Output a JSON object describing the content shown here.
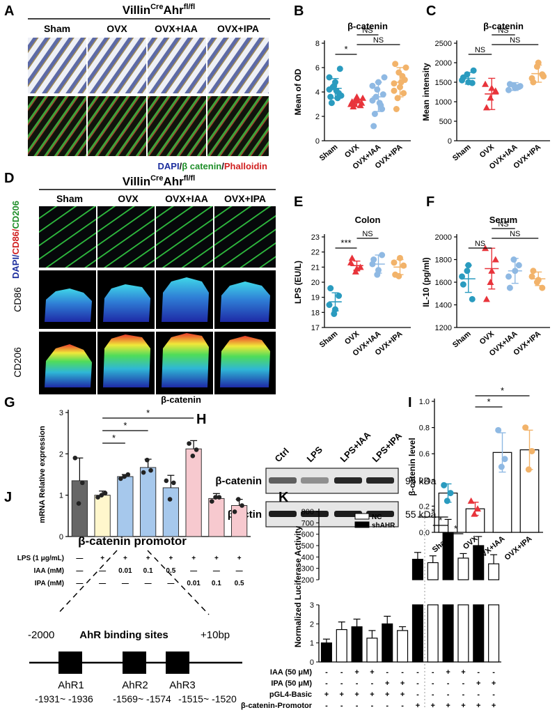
{
  "panels": {
    "A": {
      "label": "A",
      "title_main": "Villin",
      "title_sup1": "Cre",
      "title_mid": "Ahr",
      "title_sup2": "fl/fl",
      "columns": [
        "Sham",
        "OVX",
        "OVX+IAA",
        "OVX+IPA"
      ],
      "legend_dapi": "DAPI",
      "legend_sep1": "/",
      "legend_bcat": "β catenin",
      "legend_sep2": "/",
      "legend_phal": "Phalloidin"
    },
    "D": {
      "label": "D",
      "title_main": "Villin",
      "title_sup1": "Cre",
      "title_mid": "Ahr",
      "title_sup2": "fl/fl",
      "columns": [
        "Sham",
        "OVX",
        "OVX+IAA",
        "OVX+IPA"
      ],
      "row1_dapi": "DAPI/",
      "row1_cd86": "CD86/",
      "row1_cd206": "CD206",
      "row2": "CD86",
      "row3": "CD206"
    },
    "H": {
      "label": "H",
      "lanes": [
        "Ctrl",
        "LPS",
        "LPS+IAA",
        "LPS+IPA"
      ],
      "bands": [
        {
          "name": "β-catenin",
          "kda": "95 kDa",
          "intensity": [
            0.55,
            0.3,
            0.85,
            0.85
          ]
        },
        {
          "name": "β-actin",
          "kda": "55 kDa",
          "intensity": [
            0.9,
            0.9,
            0.9,
            0.9
          ]
        }
      ]
    },
    "J": {
      "label": "J",
      "title": "β-catenin promotor",
      "left": "-2000",
      "right": "+10bp",
      "middle": "AhR binding sites",
      "sites": [
        {
          "name": "AhR1",
          "range": "-1931~ -1936"
        },
        {
          "name": "AhR2",
          "range": "-1569~ -1574"
        },
        {
          "name": "AhR3",
          "range": "-1515~ -1520"
        }
      ]
    }
  },
  "chart_data": [
    {
      "id": "B",
      "label": "B",
      "type": "scatter",
      "title": "β-catenin",
      "ylabel": "Mean of OD",
      "xlabel": "",
      "categories": [
        "Sham",
        "OVX",
        "OVX+IAA",
        "OVX+IPA"
      ],
      "ylim": [
        0,
        8
      ],
      "yticks": [
        0,
        2,
        4,
        6,
        8
      ],
      "colors": [
        "#2a9bbf",
        "#e8343b",
        "#8fb9e3",
        "#f2b36a"
      ],
      "markers": [
        "circle",
        "triangle",
        "circle",
        "circle"
      ],
      "points": [
        [
          4.2,
          4.5,
          3.9,
          3.6,
          4.8,
          5.9,
          3.1,
          4.1,
          3.7,
          4.4,
          3.5,
          5.2
        ],
        [
          3.0,
          3.4,
          2.9,
          3.2,
          3.6,
          3.1,
          2.8,
          3.3,
          3.5,
          3.0
        ],
        [
          3.3,
          4.2,
          2.6,
          1.2,
          4.8,
          3.8,
          2.2,
          3.1,
          5.2,
          3.6,
          2.9,
          4.5
        ],
        [
          4.7,
          5.6,
          3.9,
          6.3,
          4.4,
          5.0,
          2.6,
          4.8,
          6.0,
          3.5,
          5.3,
          4.1
        ]
      ],
      "mean": [
        4.3,
        3.1,
        3.6,
        4.8
      ],
      "sd": [
        0.8,
        0.3,
        1.2,
        1.2
      ],
      "comparisons": [
        {
          "from": 0,
          "to": 1,
          "label": "*"
        },
        {
          "from": 1,
          "to": 3,
          "label": "NS"
        },
        {
          "from": 1,
          "to": 2,
          "label": "NS"
        }
      ]
    },
    {
      "id": "C",
      "label": "C",
      "type": "scatter",
      "title": "β-catenin",
      "ylabel": "Mean intensity",
      "xlabel": "",
      "categories": [
        "Sham",
        "OVX",
        "OVX+IAA",
        "OVX+IPA"
      ],
      "ylim": [
        0,
        2500
      ],
      "yticks": [
        0,
        500,
        1000,
        1500,
        2000,
        2500
      ],
      "colors": [
        "#2a9bbf",
        "#e8343b",
        "#8fb9e3",
        "#f2b36a"
      ],
      "markers": [
        "circle",
        "triangle",
        "circle",
        "circle"
      ],
      "points": [
        [
          1550,
          1700,
          1480,
          1620,
          1500,
          1800
        ],
        [
          1450,
          1100,
          1280,
          850,
          1350
        ],
        [
          1300,
          1420,
          1380,
          1450,
          1350,
          1400
        ],
        [
          1600,
          1900,
          1700,
          1500,
          2000,
          1650
        ]
      ],
      "mean": [
        1600,
        1200,
        1390,
        1720
      ],
      "sd": [
        150,
        400,
        100,
        220
      ],
      "comparisons": [
        {
          "from": 0,
          "to": 1,
          "label": "NS"
        },
        {
          "from": 1,
          "to": 3,
          "label": "NS"
        },
        {
          "from": 1,
          "to": 2,
          "label": "NS"
        }
      ]
    },
    {
      "id": "E",
      "label": "E",
      "type": "scatter",
      "title": "Colon",
      "ylabel": "LPS (EU/L)",
      "xlabel": "",
      "categories": [
        "Sham",
        "OVX",
        "OVX+IAA",
        "OVX+IPA"
      ],
      "ylim": [
        17,
        23
      ],
      "yticks": [
        17,
        18,
        19,
        20,
        21,
        22,
        23
      ],
      "colors": [
        "#2a9bbf",
        "#e8343b",
        "#8fb9e3",
        "#f2b36a"
      ],
      "markers": [
        "circle",
        "triangle",
        "circle",
        "circle"
      ],
      "points": [
        [
          18.5,
          17.9,
          19.1,
          19.6,
          18.2
        ],
        [
          21.3,
          20.7,
          21.0,
          21.6,
          20.9
        ],
        [
          21.2,
          20.5,
          21.8,
          21.5,
          20.8
        ],
        [
          21.3,
          20.4,
          21.1,
          20.5,
          21.6
        ]
      ],
      "mean": [
        18.7,
        21.1,
        21.2,
        21.0
      ],
      "sd": [
        0.6,
        0.3,
        0.6,
        0.5
      ],
      "comparisons": [
        {
          "from": 0,
          "to": 1,
          "label": "***"
        },
        {
          "from": 1,
          "to": 2,
          "label": "NS"
        }
      ]
    },
    {
      "id": "F",
      "label": "F",
      "type": "scatter",
      "title": "Serum",
      "ylabel": "IL-10 (pg/ml)",
      "xlabel": "",
      "categories": [
        "Sham",
        "OVX",
        "OVX+IAA",
        "OVX+IPA"
      ],
      "ylim": [
        1200,
        2000
      ],
      "yticks": [
        1200,
        1400,
        1600,
        1800,
        2000
      ],
      "colors": [
        "#2a9bbf",
        "#e8343b",
        "#8fb9e3",
        "#f2b36a"
      ],
      "markers": [
        "circle",
        "triangle",
        "circle",
        "circle"
      ],
      "points": [
        [
          1650,
          1700,
          1450,
          1580,
          1750
        ],
        [
          1900,
          1600,
          1800,
          1450,
          1700
        ],
        [
          1650,
          1800,
          1750,
          1550,
          1700
        ],
        [
          1650,
          1600,
          1550,
          1700,
          1620
        ]
      ],
      "mean": [
        1630,
        1720,
        1700,
        1630
      ],
      "sd": [
        120,
        180,
        110,
        60
      ],
      "comparisons": [
        {
          "from": 0,
          "to": 1,
          "label": "NS"
        },
        {
          "from": 1,
          "to": 3,
          "label": "NS"
        },
        {
          "from": 1,
          "to": 2,
          "label": "NS"
        }
      ]
    },
    {
      "id": "G",
      "label": "G",
      "type": "bar",
      "title": "β-catenin",
      "ylabel": "mRNA Relative expression",
      "xlabel": "",
      "ylim": [
        0,
        3
      ],
      "yticks": [
        0,
        1,
        2,
        3
      ],
      "values": [
        1.35,
        1.0,
        1.45,
        1.67,
        1.18,
        2.12,
        0.92,
        0.75
      ],
      "sd": [
        0.55,
        0.1,
        0.05,
        0.2,
        0.3,
        0.2,
        0.12,
        0.15
      ],
      "colors": [
        "#666666",
        "#fff7cc",
        "#a6c8ec",
        "#a6c8ec",
        "#a6c8ec",
        "#f7c9cf",
        "#f7c9cf",
        "#f7c9cf"
      ],
      "points": [
        [
          1.9,
          0.8,
          1.3
        ],
        [
          0.95,
          1.0,
          1.05
        ],
        [
          1.4,
          1.45,
          1.5
        ],
        [
          1.55,
          1.85,
          1.6
        ],
        [
          1.35,
          0.9,
          1.3
        ],
        [
          2.25,
          1.95,
          2.1
        ],
        [
          0.85,
          0.95,
          0.95
        ],
        [
          0.6,
          0.9,
          0.75
        ]
      ],
      "comparisons": [
        {
          "from": 1,
          "to": 2,
          "label": "*"
        },
        {
          "from": 1,
          "to": 3,
          "label": "*"
        },
        {
          "from": 1,
          "to": 5,
          "label": "*"
        }
      ],
      "conditions": [
        {
          "name": "LPS (1 μg/mL)",
          "values": [
            "—",
            "+",
            "+",
            "+",
            "+",
            "+",
            "+",
            "+"
          ]
        },
        {
          "name": "IAA (mM)",
          "values": [
            "—",
            "—",
            "0.01",
            "0.1",
            "0.5",
            "—",
            "—",
            "—"
          ]
        },
        {
          "name": "IPA (mM)",
          "values": [
            "—",
            "—",
            "—",
            "—",
            "—",
            "0.01",
            "0.1",
            "0.5"
          ]
        }
      ]
    },
    {
      "id": "I",
      "label": "I",
      "type": "bar",
      "title": "",
      "ylabel": "β-catenin level",
      "xlabel": "",
      "categories": [
        "Sham",
        "OVX",
        "OVX+IAA",
        "OVX+IPA"
      ],
      "ylim": [
        0,
        1.0
      ],
      "yticks": [
        0.0,
        0.2,
        0.4,
        0.6,
        0.8,
        1.0
      ],
      "values": [
        0.3,
        0.18,
        0.61,
        0.63
      ],
      "sd": [
        0.07,
        0.05,
        0.15,
        0.15
      ],
      "colors": [
        "#2a9bbf",
        "#e8343b",
        "#8fb9e3",
        "#f2b36a"
      ],
      "markers": [
        "circle",
        "triangle",
        "circle",
        "circle"
      ],
      "points": [
        [
          0.36,
          0.24,
          0.3
        ],
        [
          0.24,
          0.14,
          0.18
        ],
        [
          0.78,
          0.5,
          0.56
        ],
        [
          0.8,
          0.48,
          0.62
        ]
      ],
      "comparisons": [
        {
          "from": 1,
          "to": 2,
          "label": "*"
        },
        {
          "from": 1,
          "to": 3,
          "label": "*"
        }
      ]
    },
    {
      "id": "K",
      "label": "K",
      "type": "bar",
      "title": "",
      "ylabel": "Normalized Luciferase Activity",
      "xlabel": "",
      "yticks_bottom": [
        0,
        1,
        2,
        3
      ],
      "yticks_top": [
        200,
        300,
        400,
        500,
        600,
        700,
        800
      ],
      "legend": [
        "NC",
        "shAHR"
      ],
      "values": [
        1.0,
        1.7,
        1.85,
        1.25,
        2.0,
        1.65,
        380,
        350,
        610,
        390,
        500,
        340
      ],
      "sd": [
        0.2,
        0.4,
        0.4,
        0.4,
        0.4,
        0.2,
        60,
        60,
        120,
        40,
        80,
        80
      ],
      "filled": [
        true,
        false,
        true,
        false,
        true,
        false,
        true,
        false,
        true,
        false,
        true,
        false
      ],
      "comparisons": [
        {
          "from": 6,
          "to": 8,
          "label": "*"
        },
        {
          "from": 7,
          "to": 8,
          "label": "*"
        },
        {
          "from": 8,
          "to": 9,
          "label": "*"
        }
      ],
      "conditions": [
        {
          "name": "IAA (50 μM)",
          "values": [
            "-",
            "-",
            "+",
            "+",
            "-",
            "-",
            "-",
            "-",
            "+",
            "+",
            "-",
            "-"
          ]
        },
        {
          "name": "IPA (50 μM)",
          "values": [
            "-",
            "-",
            "-",
            "-",
            "+",
            "+",
            "-",
            "-",
            "-",
            "-",
            "+",
            "+"
          ]
        },
        {
          "name": "pGL4-Basic",
          "values": [
            "+",
            "+",
            "+",
            "+",
            "+",
            "+",
            "-",
            "-",
            "-",
            "-",
            "-",
            "-"
          ]
        },
        {
          "name": "β-catenin-Promotor",
          "values": [
            "-",
            "-",
            "-",
            "-",
            "-",
            "-",
            "+",
            "+",
            "+",
            "+",
            "+",
            "+"
          ]
        }
      ]
    }
  ]
}
